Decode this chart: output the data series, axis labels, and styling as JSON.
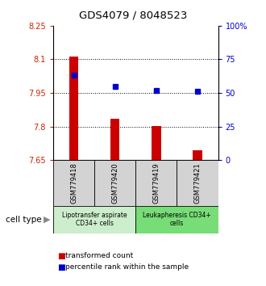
{
  "title": "GDS4079 / 8048523",
  "samples": [
    "GSM779418",
    "GSM779420",
    "GSM779419",
    "GSM779421"
  ],
  "bar_values": [
    8.114,
    7.835,
    7.801,
    7.693
  ],
  "percentile_values": [
    63,
    55,
    52,
    51
  ],
  "bar_color": "#cc0000",
  "dot_color": "#0000cc",
  "ylim_left": [
    7.65,
    8.25
  ],
  "ylim_right": [
    0,
    100
  ],
  "yticks_left": [
    7.65,
    7.8,
    7.95,
    8.1,
    8.25
  ],
  "ytick_labels_left": [
    "7.65",
    "7.8",
    "7.95",
    "8.1",
    "8.25"
  ],
  "yticks_right": [
    0,
    25,
    50,
    75,
    100
  ],
  "ytick_labels_right": [
    "0",
    "25",
    "50",
    "75",
    "100%"
  ],
  "hlines": [
    8.1,
    7.95,
    7.8
  ],
  "group1_label": "Lipotransfer aspirate\nCD34+ cells",
  "group2_label": "Leukapheresis CD34+\ncells",
  "group1_color": "#cceecc",
  "group2_color": "#77dd77",
  "cell_type_label": "cell type",
  "legend1_label": "transformed count",
  "legend2_label": "percentile rank within the sample",
  "bg_color": "#ffffff",
  "left_axis_color": "#cc2200",
  "right_axis_color": "#0000cc",
  "sample_box_color": "#d3d3d3",
  "bar_width": 0.22
}
